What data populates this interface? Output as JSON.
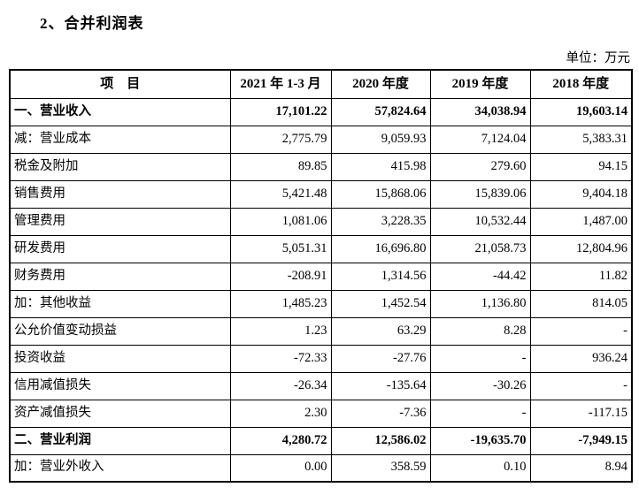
{
  "page": {
    "title": "2、合并利润表",
    "unit_label": "单位：万元"
  },
  "colors": {
    "background": "#ffffff",
    "text": "#000000",
    "border": "#000000"
  },
  "table": {
    "columns": [
      "项　目",
      "2021 年 1-3 月",
      "2020 年度",
      "2019 年度",
      "2018 年度"
    ],
    "rows": [
      {
        "label": "一、营业收入",
        "values": [
          "17,101.22",
          "57,824.64",
          "34,038.94",
          "19,603.14"
        ],
        "bold": true
      },
      {
        "label": "减：营业成本",
        "values": [
          "2,775.79",
          "9,059.93",
          "7,124.04",
          "5,383.31"
        ],
        "bold": false
      },
      {
        "label": "税金及附加",
        "values": [
          "89.85",
          "415.98",
          "279.60",
          "94.15"
        ],
        "bold": false
      },
      {
        "label": "销售费用",
        "values": [
          "5,421.48",
          "15,868.06",
          "15,839.06",
          "9,404.18"
        ],
        "bold": false
      },
      {
        "label": "管理费用",
        "values": [
          "1,081.06",
          "3,228.35",
          "10,532.44",
          "1,487.00"
        ],
        "bold": false
      },
      {
        "label": "研发费用",
        "values": [
          "5,051.31",
          "16,696.80",
          "21,058.73",
          "12,804.96"
        ],
        "bold": false
      },
      {
        "label": "财务费用",
        "values": [
          "-208.91",
          "1,314.56",
          "-44.42",
          "11.82"
        ],
        "bold": false
      },
      {
        "label": "加：其他收益",
        "values": [
          "1,485.23",
          "1,452.54",
          "1,136.80",
          "814.05"
        ],
        "bold": false
      },
      {
        "label": "公允价值变动损益",
        "values": [
          "1.23",
          "63.29",
          "8.28",
          "-"
        ],
        "bold": false
      },
      {
        "label": "投资收益",
        "values": [
          "-72.33",
          "-27.76",
          "-",
          "936.24"
        ],
        "bold": false
      },
      {
        "label": "信用减值损失",
        "values": [
          "-26.34",
          "-135.64",
          "-30.26",
          "-"
        ],
        "bold": false
      },
      {
        "label": "资产减值损失",
        "values": [
          "2.30",
          "-7.36",
          "-",
          "-117.15"
        ],
        "bold": false
      },
      {
        "label": "二、营业利润",
        "values": [
          "4,280.72",
          "12,586.02",
          "-19,635.70",
          "-7,949.15"
        ],
        "bold": true
      },
      {
        "label": "加：营业外收入",
        "values": [
          "0.00",
          "358.59",
          "0.10",
          "8.94"
        ],
        "bold": false
      }
    ]
  }
}
